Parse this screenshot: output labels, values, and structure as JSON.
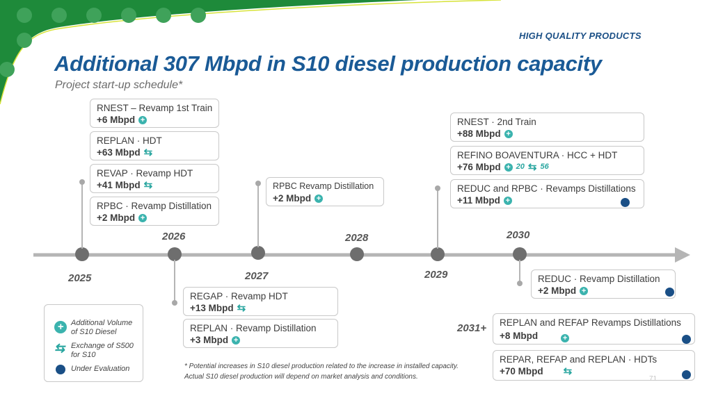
{
  "header_tag": "HIGH QUALITY PRODUCTS",
  "title": "Additional 307 Mbpd in S10 diesel production capacity",
  "subtitle": "Project start-up schedule*",
  "years": [
    "2025",
    "2026",
    "2027",
    "2028",
    "2029",
    "2030",
    "2031+"
  ],
  "boxes": {
    "b2025_1": {
      "name": "RNEST – Revamp 1st Train",
      "value": "+6 Mbpd"
    },
    "b2025_2": {
      "name": "REPLAN · HDT",
      "value": "+63 Mbpd"
    },
    "b2025_3": {
      "name": "REVAP · Revamp HDT",
      "value": "+41 Mbpd"
    },
    "b2025_4": {
      "name": "RPBC · Revamp Distillation",
      "value": "+2 Mbpd"
    },
    "b2026_1": {
      "name": "REGAP · Revamp HDT",
      "value": "+13 Mbpd"
    },
    "b2026_2": {
      "name": "REPLAN · Revamp Distillation",
      "value": "+3 Mbpd"
    },
    "b2027_1": {
      "name": "RPBC Revamp Distillation",
      "value": "+2 Mbpd"
    },
    "b2029_1": {
      "name": "RNEST · 2nd Train",
      "value": "+88 Mbpd"
    },
    "b2029_2": {
      "name": "REFINO BOAVENTURA · HCC + HDT",
      "value": "+76 Mbpd",
      "split_a": "20",
      "split_b": "56"
    },
    "b2029_3": {
      "name": "REDUC and RPBC · Revamps Distillations",
      "value": "+11 Mbpd"
    },
    "b2030_1": {
      "name": "REDUC · Revamp Distillation",
      "value": "+2 Mbpd"
    },
    "b2031_1": {
      "name": "REPLAN and REFAP Revamps Distillations",
      "value": "+8 Mbpd"
    },
    "b2031_2": {
      "name": "REPAR, REFAP and REPLAN · HDTs",
      "value": "+70 Mbpd"
    }
  },
  "legend": {
    "additional": "Additional Volume of S10 Diesel",
    "exchange": "Exchange of S500 for S10",
    "evaluation": "Under Evaluation"
  },
  "footnote_1": "* Potential increases in S10 diesel production related to the increase in installed capacity.",
  "footnote_2": "Actual S10 diesel production will depend on market analysis and conditions.",
  "page_number": "71",
  "colors": {
    "title": "#1a5a96",
    "green": "#1e8a3a",
    "teal": "#3bb3ae",
    "evaluation": "#1a4f86"
  }
}
